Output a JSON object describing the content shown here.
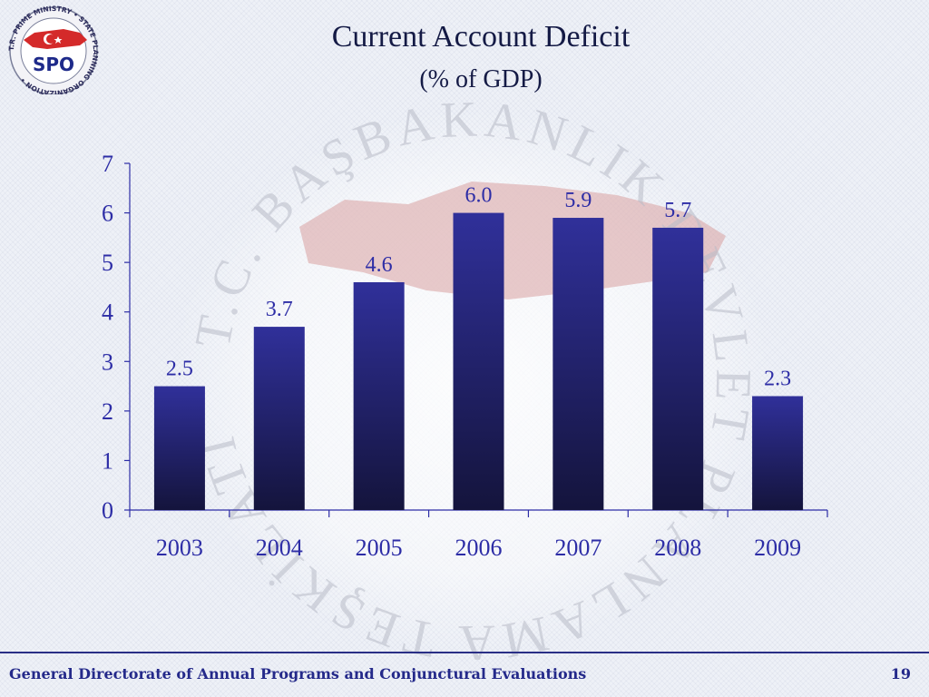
{
  "slide": {
    "title": "Current Account Deficit",
    "subtitle": "(% of GDP)",
    "footer_text": "General Directorate of Annual Programs and Conjunctural Evaluations",
    "page_number": "19"
  },
  "logo": {
    "text": "SPO",
    "ring_text": "T.R. PRIME MINISTRY • STATE PLANNING ORGANIZATION •",
    "icon": "spo-logo-icon"
  },
  "watermark": {
    "ring_text": "T.C. BAŞBAKANLIK DEVLET PLANLAMA TEŞKİLATI",
    "icon": "turkey-map-seal-icon"
  },
  "colors": {
    "bar_top": "#30309a",
    "bar_bottom": "#14143c",
    "text": "#2d2da6",
    "title": "#141a45"
  },
  "chart_data": {
    "type": "bar",
    "categories": [
      "2003",
      "2004",
      "2005",
      "2006",
      "2007",
      "2008",
      "2009"
    ],
    "values": [
      2.5,
      3.7,
      4.6,
      6.0,
      5.9,
      5.7,
      2.3
    ],
    "value_labels": [
      "2.5",
      "3.7",
      "4.6",
      "6.0",
      "5.9",
      "5.7",
      "2.3"
    ],
    "title": "Current Account Deficit",
    "subtitle": "(% of GDP)",
    "xlabel": "",
    "ylabel": "",
    "ylim": [
      0,
      7
    ],
    "yticks": [
      "0",
      "1",
      "2",
      "3",
      "4",
      "5",
      "6",
      "7"
    ],
    "grid": false,
    "legend": "none"
  }
}
